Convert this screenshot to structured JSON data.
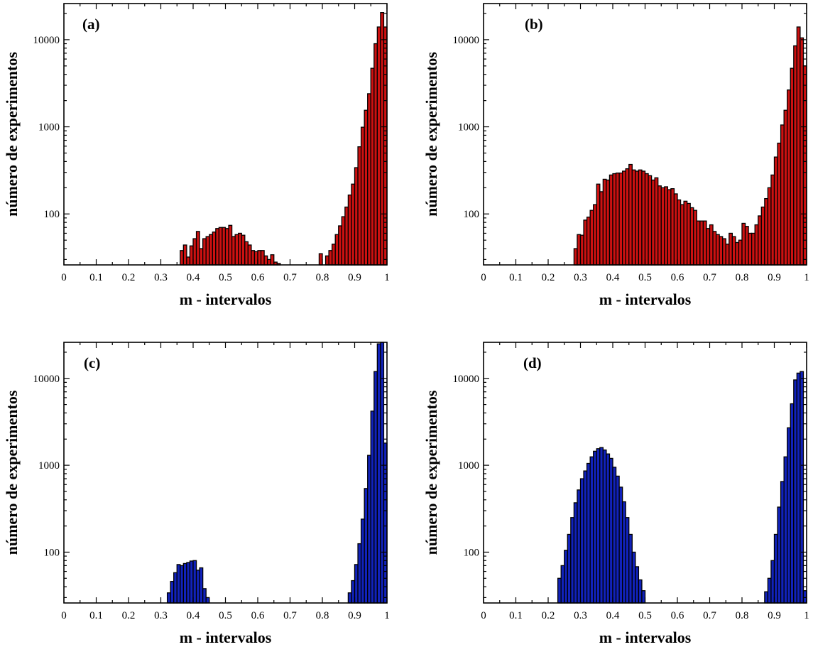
{
  "chart_data": [
    {
      "type": "bar",
      "panel_label": "(a)",
      "xlabel": "m - intervalos",
      "ylabel": "número de experimentos",
      "x_scale": "linear",
      "y_scale": "log",
      "xlim": [
        0,
        1
      ],
      "ylim": [
        26,
        26000
      ],
      "x_ticks": [
        "0",
        "0.1",
        "0.2",
        "0.3",
        "0.4",
        "0.5",
        "0.6",
        "0.7",
        "0.8",
        "0.9",
        "1"
      ],
      "y_ticks": [
        "100",
        "1000",
        "10000"
      ],
      "bar_color": "#cc1111",
      "bin_width": 0.01,
      "bin_start": [
        0.36,
        0.37,
        0.38,
        0.39,
        0.4,
        0.41,
        0.42,
        0.43,
        0.44,
        0.45,
        0.46,
        0.47,
        0.48,
        0.49,
        0.5,
        0.51,
        0.52,
        0.53,
        0.54,
        0.55,
        0.56,
        0.57,
        0.58,
        0.59,
        0.6,
        0.61,
        0.62,
        0.63,
        0.64,
        0.65,
        0.66,
        0.79,
        0.81,
        0.82,
        0.83,
        0.84,
        0.85,
        0.86,
        0.87,
        0.88,
        0.89,
        0.9,
        0.91,
        0.92,
        0.93,
        0.94,
        0.95,
        0.96,
        0.97,
        0.98,
        0.99
      ],
      "values": [
        38,
        44,
        32,
        43,
        52,
        63,
        40,
        52,
        55,
        58,
        62,
        68,
        70,
        70,
        68,
        74,
        55,
        58,
        60,
        57,
        48,
        44,
        38,
        37,
        38,
        38,
        33,
        30,
        34,
        28,
        27,
        35,
        33,
        38,
        45,
        58,
        73,
        93,
        120,
        165,
        220,
        340,
        590,
        990,
        1550,
        2400,
        4700,
        9000,
        14000,
        20500,
        14000
      ]
    },
    {
      "type": "bar",
      "panel_label": "(b)",
      "xlabel": "m - intervalos",
      "ylabel": "número de experimentos",
      "x_scale": "linear",
      "y_scale": "log",
      "xlim": [
        0,
        1
      ],
      "ylim": [
        26,
        26000
      ],
      "x_ticks": [
        "0",
        "0.1",
        "0.2",
        "0.3",
        "0.4",
        "0.5",
        "0.6",
        "0.7",
        "0.8",
        "0.9",
        "1"
      ],
      "y_ticks": [
        "100",
        "1000",
        "10000"
      ],
      "bar_color": "#cc1111",
      "bin_width": 0.01,
      "bin_start": [
        0.28,
        0.29,
        0.3,
        0.31,
        0.32,
        0.33,
        0.34,
        0.35,
        0.36,
        0.37,
        0.38,
        0.39,
        0.4,
        0.41,
        0.42,
        0.43,
        0.44,
        0.45,
        0.46,
        0.47,
        0.48,
        0.49,
        0.5,
        0.51,
        0.52,
        0.53,
        0.54,
        0.55,
        0.56,
        0.57,
        0.58,
        0.59,
        0.6,
        0.61,
        0.62,
        0.63,
        0.64,
        0.65,
        0.66,
        0.67,
        0.68,
        0.69,
        0.7,
        0.71,
        0.72,
        0.73,
        0.74,
        0.75,
        0.76,
        0.77,
        0.78,
        0.79,
        0.8,
        0.81,
        0.82,
        0.83,
        0.84,
        0.85,
        0.86,
        0.87,
        0.88,
        0.89,
        0.9,
        0.91,
        0.92,
        0.93,
        0.94,
        0.95,
        0.96,
        0.97,
        0.98,
        0.99
      ],
      "values": [
        40,
        58,
        57,
        85,
        92,
        110,
        128,
        220,
        180,
        250,
        245,
        280,
        290,
        295,
        295,
        310,
        330,
        370,
        320,
        310,
        320,
        310,
        290,
        275,
        245,
        260,
        210,
        200,
        205,
        190,
        195,
        170,
        145,
        128,
        140,
        132,
        118,
        110,
        83,
        83,
        83,
        68,
        75,
        63,
        58,
        55,
        52,
        45,
        60,
        55,
        47,
        50,
        78,
        72,
        60,
        60,
        75,
        95,
        120,
        150,
        200,
        280,
        450,
        650,
        1050,
        1550,
        2650,
        4700,
        8500,
        14000,
        10500,
        5000
      ]
    },
    {
      "type": "bar",
      "panel_label": "(c)",
      "xlabel": "m - intervalos",
      "ylabel": "número de experimentos",
      "x_scale": "linear",
      "y_scale": "log",
      "xlim": [
        0,
        1
      ],
      "ylim": [
        26,
        26000
      ],
      "x_ticks": [
        "0",
        "0.1",
        "0.2",
        "0.3",
        "0.4",
        "0.5",
        "0.6",
        "0.7",
        "0.8",
        "0.9",
        "1"
      ],
      "y_ticks": [
        "100",
        "1000",
        "10000"
      ],
      "bar_color": "#1122bb",
      "bin_width": 0.01,
      "bin_start": [
        0.32,
        0.33,
        0.34,
        0.35,
        0.36,
        0.37,
        0.38,
        0.39,
        0.4,
        0.41,
        0.42,
        0.43,
        0.44,
        0.88,
        0.89,
        0.9,
        0.91,
        0.92,
        0.93,
        0.94,
        0.95,
        0.96,
        0.97,
        0.98,
        0.99
      ],
      "values": [
        34,
        46,
        58,
        72,
        70,
        74,
        76,
        79,
        80,
        62,
        66,
        38,
        30,
        34,
        47,
        72,
        125,
        240,
        540,
        1300,
        4200,
        12000,
        25000,
        28000,
        1800
      ]
    },
    {
      "type": "bar",
      "panel_label": "(d)",
      "xlabel": "m - intervalos",
      "ylabel": "número de experimentos",
      "x_scale": "linear",
      "y_scale": "log",
      "xlim": [
        0,
        1
      ],
      "ylim": [
        26,
        26000
      ],
      "x_ticks": [
        "0",
        "0.1",
        "0.2",
        "0.3",
        "0.4",
        "0.5",
        "0.6",
        "0.7",
        "0.8",
        "0.9",
        "1"
      ],
      "y_ticks": [
        "100",
        "1000",
        "10000"
      ],
      "bar_color": "#1122bb",
      "bin_width": 0.01,
      "bin_start": [
        0.23,
        0.24,
        0.25,
        0.26,
        0.27,
        0.28,
        0.29,
        0.3,
        0.31,
        0.32,
        0.33,
        0.34,
        0.35,
        0.36,
        0.37,
        0.38,
        0.39,
        0.4,
        0.41,
        0.42,
        0.43,
        0.44,
        0.45,
        0.46,
        0.47,
        0.48,
        0.49,
        0.87,
        0.88,
        0.89,
        0.9,
        0.91,
        0.92,
        0.93,
        0.94,
        0.95,
        0.96,
        0.97,
        0.98,
        0.99
      ],
      "values": [
        50,
        70,
        105,
        160,
        250,
        370,
        520,
        700,
        860,
        1050,
        1250,
        1450,
        1550,
        1600,
        1500,
        1350,
        1200,
        950,
        750,
        560,
        380,
        250,
        160,
        100,
        68,
        48,
        36,
        35,
        50,
        80,
        160,
        330,
        650,
        1250,
        2700,
        5100,
        9600,
        11500,
        12000,
        36
      ]
    }
  ]
}
